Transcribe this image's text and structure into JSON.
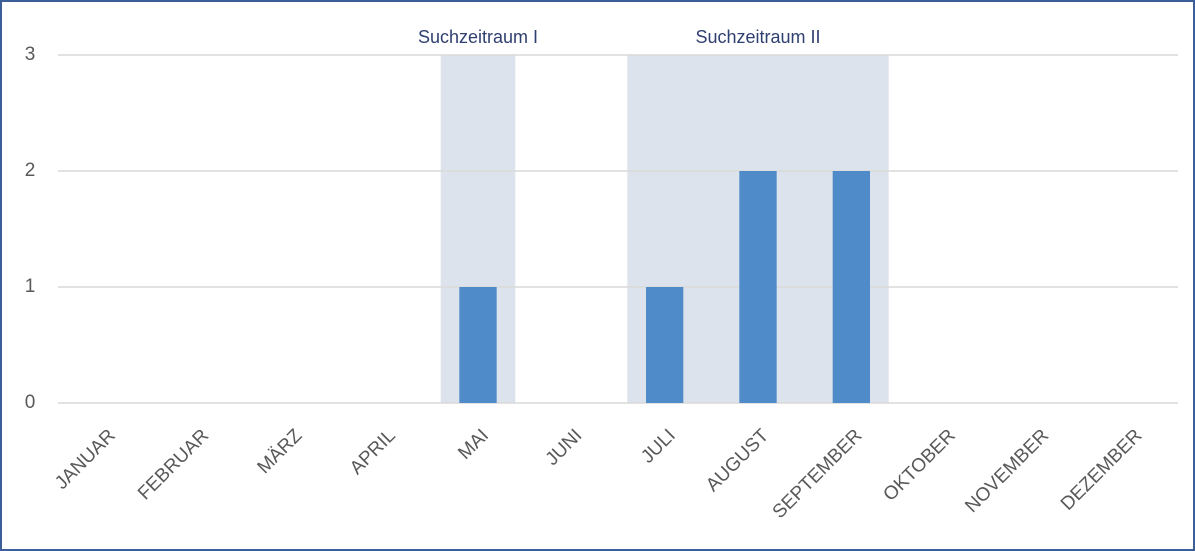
{
  "chart_data": {
    "type": "bar",
    "categories": [
      "JANUAR",
      "FEBRUAR",
      "MÄRZ",
      "APRIL",
      "MAI",
      "JUNI",
      "JULI",
      "AUGUST",
      "SEPTEMBER",
      "OKTOBER",
      "NOVEMBER",
      "DEZEMBER"
    ],
    "values": [
      0,
      0,
      0,
      0,
      1,
      0,
      1,
      2,
      2,
      0,
      0,
      0
    ],
    "color": "#4f8bc9",
    "ylim": [
      0,
      3
    ],
    "yticks": [
      0,
      1,
      2,
      3
    ],
    "grid": true,
    "annotations": [
      {
        "label": "Suchzeitraum I",
        "from": "MAI",
        "to": "MAI"
      },
      {
        "label": "Suchzeitraum II",
        "from": "JULI",
        "to": "SEPTEMBER"
      }
    ]
  }
}
